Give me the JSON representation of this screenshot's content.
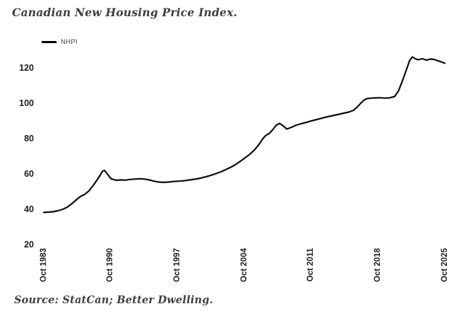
{
  "title": "Canadian New Housing Price Index.",
  "source": "Source: StatCan; Better Dwelling.",
  "legend": {
    "label": "NHPI",
    "color": "#000000"
  },
  "colors": {
    "line": "#0b0b0b",
    "title_text": "#3f3f3f",
    "axis_text": "#1c1c1c",
    "background": "#ffffff"
  },
  "chart_data": {
    "type": "line",
    "title": "Canadian New Housing Price Index.",
    "xlabel": "",
    "ylabel": "",
    "grid": false,
    "legend_position": "top-left",
    "xlim": [
      1983.75,
      2025.75
    ],
    "ylim": [
      20,
      130
    ],
    "y_ticks": [
      20,
      40,
      60,
      80,
      100,
      120
    ],
    "x_ticks": [
      {
        "label": "Oct 1983",
        "x": 1983.75
      },
      {
        "label": "Oct 1990",
        "x": 1990.75
      },
      {
        "label": "Oct 1997",
        "x": 1997.75
      },
      {
        "label": "Oct 2004",
        "x": 2004.75
      },
      {
        "label": "Oct 2011",
        "x": 2011.75
      },
      {
        "label": "Oct 2018",
        "x": 2018.75
      },
      {
        "label": "Oct 2025",
        "x": 2025.75
      }
    ],
    "series": [
      {
        "name": "NHPI",
        "x": [
          1983.75,
          1984.25,
          1984.75,
          1985.25,
          1985.75,
          1986.25,
          1986.75,
          1987.25,
          1987.6,
          1988.0,
          1988.5,
          1989.0,
          1989.5,
          1989.9,
          1990.1,
          1990.4,
          1990.8,
          1991.3,
          1991.8,
          1992.3,
          1992.8,
          1993.3,
          1993.8,
          1994.3,
          1994.8,
          1995.3,
          1995.8,
          1996.3,
          1996.8,
          1997.3,
          1997.8,
          1998.3,
          1998.8,
          1999.3,
          1999.8,
          2000.3,
          2000.8,
          2001.3,
          2001.8,
          2002.3,
          2002.8,
          2003.3,
          2003.8,
          2004.3,
          2004.8,
          2005.3,
          2005.8,
          2006.3,
          2006.7,
          2007.0,
          2007.3,
          2007.7,
          2008.1,
          2008.45,
          2008.8,
          2009.2,
          2009.7,
          2010.2,
          2010.7,
          2011.2,
          2011.7,
          2012.2,
          2012.7,
          2013.2,
          2013.7,
          2014.2,
          2014.7,
          2015.2,
          2015.7,
          2016.2,
          2016.6,
          2017.0,
          2017.3,
          2017.6,
          2018.0,
          2018.5,
          2019.0,
          2019.5,
          2020.0,
          2020.5,
          2020.9,
          2021.3,
          2021.7,
          2022.05,
          2022.35,
          2022.7,
          2023.0,
          2023.4,
          2023.8,
          2024.3,
          2024.7,
          2025.1,
          2025.45,
          2025.75
        ],
        "values": [
          38.2,
          38.4,
          38.6,
          39.2,
          40.0,
          41.3,
          43.4,
          45.8,
          47.3,
          48.3,
          50.5,
          54.0,
          58.0,
          61.5,
          62.0,
          60.0,
          57.3,
          56.4,
          56.6,
          56.5,
          56.9,
          57.1,
          57.3,
          57.1,
          56.6,
          55.9,
          55.4,
          55.2,
          55.4,
          55.7,
          55.9,
          56.1,
          56.4,
          56.8,
          57.2,
          57.8,
          58.5,
          59.3,
          60.2,
          61.2,
          62.4,
          63.7,
          65.2,
          67.0,
          69.0,
          71.0,
          73.5,
          76.8,
          80.0,
          81.8,
          82.6,
          84.8,
          87.6,
          88.6,
          87.3,
          85.4,
          86.4,
          87.6,
          88.4,
          89.1,
          89.9,
          90.6,
          91.3,
          92.0,
          92.6,
          93.2,
          93.8,
          94.4,
          95.0,
          96.0,
          98.0,
          100.3,
          101.8,
          102.6,
          102.9,
          103.0,
          103.1,
          102.9,
          103.1,
          103.8,
          107.0,
          112.5,
          118.5,
          124.0,
          126.2,
          125.0,
          124.6,
          125.2,
          124.4,
          125.0,
          124.7,
          123.9,
          123.3,
          122.6
        ]
      }
    ]
  }
}
